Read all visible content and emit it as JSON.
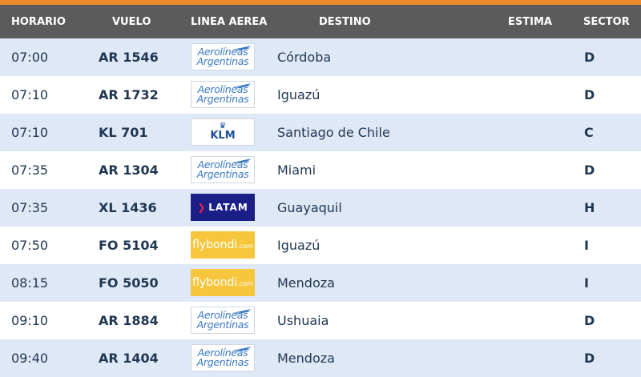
{
  "columns": {
    "horario": "HORARIO",
    "vuelo": "VUELO",
    "linea_aerea": "LINEA AEREA",
    "destino": "DESTINO",
    "estima": "ESTIMA",
    "sector": "SECTOR"
  },
  "flights": [
    {
      "time": "07:00",
      "flight": "AR 1546",
      "airline": "aerolineas",
      "logo_line1": "Aerolíneas",
      "logo_line2": "Argentinas",
      "destination": "Córdoba",
      "estima": "",
      "sector": "D"
    },
    {
      "time": "07:10",
      "flight": "AR 1732",
      "airline": "aerolineas",
      "logo_line1": "Aerolíneas",
      "logo_line2": "Argentinas",
      "destination": "Iguazú",
      "estima": "",
      "sector": "D"
    },
    {
      "time": "07:10",
      "flight": "KL 701",
      "airline": "klm",
      "logo_line1": "KLM",
      "logo_line2": "",
      "destination": "Santiago de Chile",
      "estima": "",
      "sector": "C"
    },
    {
      "time": "07:35",
      "flight": "AR 1304",
      "airline": "aerolineas",
      "logo_line1": "Aerolíneas",
      "logo_line2": "Argentinas",
      "destination": "Miami",
      "estima": "",
      "sector": "D"
    },
    {
      "time": "07:35",
      "flight": "XL 1436",
      "airline": "latam",
      "logo_line1": "LATAM",
      "logo_line2": "",
      "destination": "Guayaquil",
      "estima": "",
      "sector": "H"
    },
    {
      "time": "07:50",
      "flight": "FO 5104",
      "airline": "flybondi",
      "logo_line1": "flybondi",
      "logo_line2": ".com",
      "destination": "Iguazú",
      "estima": "",
      "sector": "I"
    },
    {
      "time": "08:15",
      "flight": "FO 5050",
      "airline": "flybondi",
      "logo_line1": "flybondi",
      "logo_line2": ".com",
      "destination": "Mendoza",
      "estima": "",
      "sector": "I"
    },
    {
      "time": "09:10",
      "flight": "AR 1884",
      "airline": "aerolineas",
      "logo_line1": "Aerolíneas",
      "logo_line2": "Argentinas",
      "destination": "Ushuaia",
      "estima": "",
      "sector": "D"
    },
    {
      "time": "09:40",
      "flight": "AR 1404",
      "airline": "aerolineas",
      "logo_line1": "Aerolíneas",
      "logo_line2": "Argentinas",
      "destination": "Mendoza",
      "estima": "",
      "sector": "D"
    }
  ],
  "colors": {
    "accent_bar": "#ee8a2a",
    "header_bg": "#5b5b5b",
    "row_alt_bg": "#dfe8f6",
    "text": "#1f3651"
  }
}
